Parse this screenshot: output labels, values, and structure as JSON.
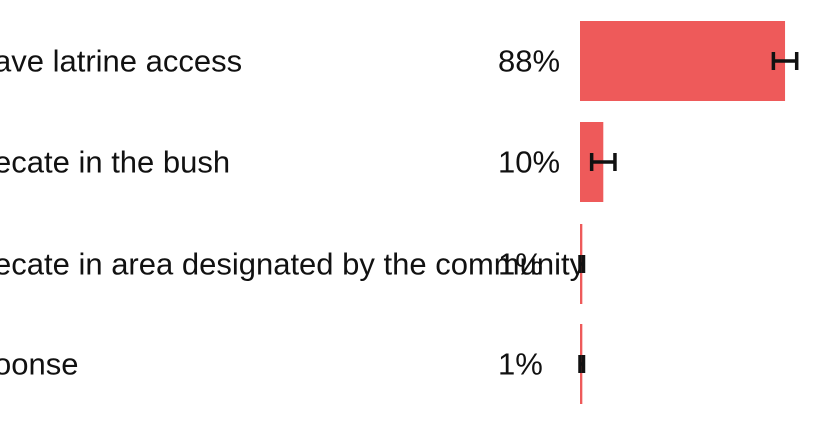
{
  "chart_data": {
    "type": "bar",
    "orientation": "horizontal",
    "title": "",
    "xlabel": "",
    "ylabel": "",
    "categories": [
      "ave latrine access",
      "ecate in the bush",
      "ecate in area designated by the community",
      "oonse"
    ],
    "values": [
      88,
      10,
      1,
      1
    ],
    "value_labels": [
      "88%",
      "10%",
      "1%",
      "1%"
    ],
    "error_low": [
      83,
      5,
      0,
      0
    ],
    "error_high": [
      93,
      15,
      1.5,
      1.5
    ],
    "xlim": [
      0,
      100
    ],
    "grid": false,
    "legend": "none",
    "colors": {
      "bar": "#ee5a5a",
      "error_bar": "#111111",
      "text": "#111111"
    }
  }
}
